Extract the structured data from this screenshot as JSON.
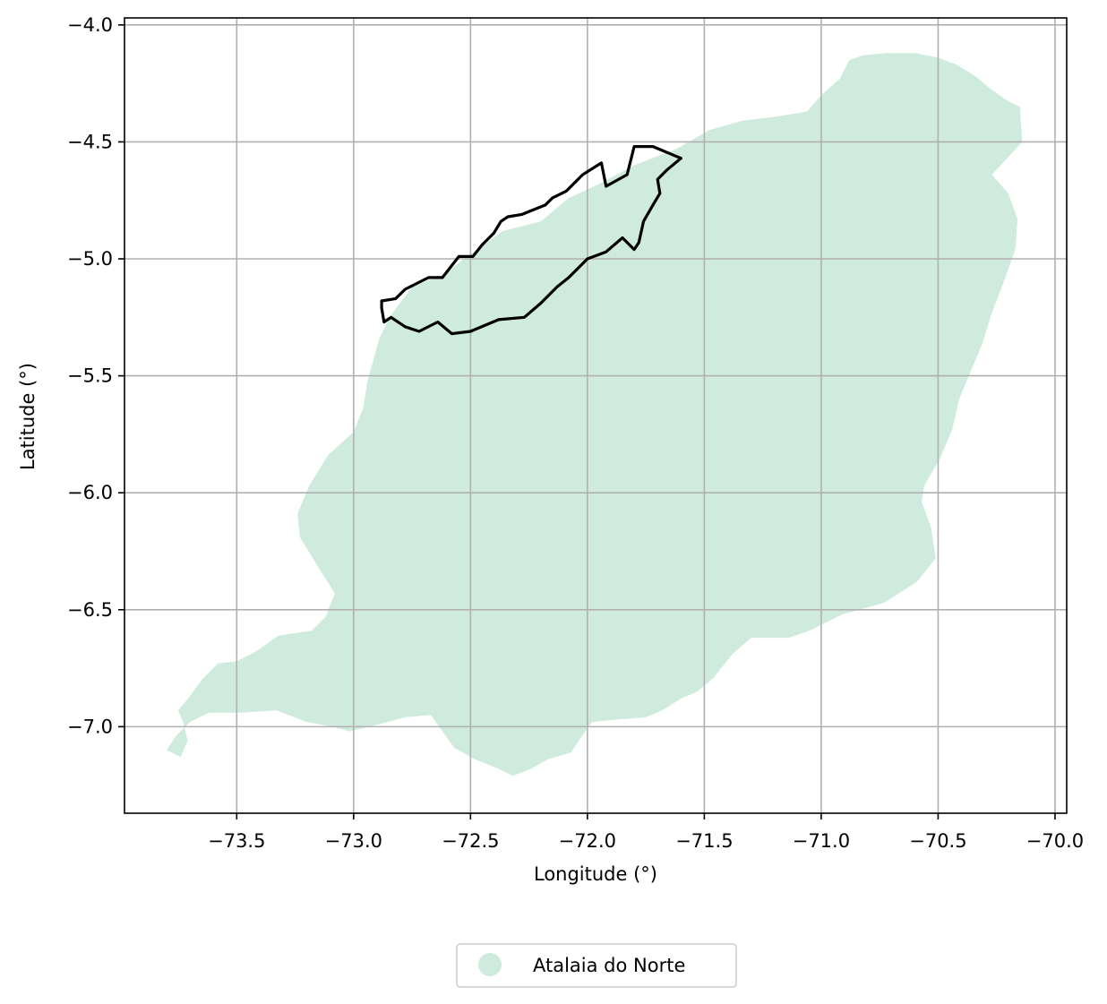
{
  "chart_data": {
    "type": "map",
    "xlabel": "Longitude (°)",
    "ylabel": "Latitude (°)",
    "xlim": [
      -73.98,
      -69.95
    ],
    "ylim": [
      -7.37,
      -3.97
    ],
    "grid": true,
    "x_ticks": [
      {
        "value": -73.5,
        "label": "−73.5"
      },
      {
        "value": -73.0,
        "label": "−73.0"
      },
      {
        "value": -72.5,
        "label": "−72.5"
      },
      {
        "value": -72.0,
        "label": "−72.0"
      },
      {
        "value": -71.5,
        "label": "−71.5"
      },
      {
        "value": -71.0,
        "label": "−71.0"
      },
      {
        "value": -70.5,
        "label": "−70.5"
      },
      {
        "value": -70.0,
        "label": "−70.0"
      }
    ],
    "y_ticks": [
      {
        "value": -4.0,
        "label": "−4.0"
      },
      {
        "value": -4.5,
        "label": "−4.5"
      },
      {
        "value": -5.0,
        "label": "−5.0"
      },
      {
        "value": -5.5,
        "label": "−5.5"
      },
      {
        "value": -6.0,
        "label": "−6.0"
      },
      {
        "value": -6.5,
        "label": "−6.5"
      },
      {
        "value": -7.0,
        "label": "−7.0"
      }
    ],
    "region": {
      "name": "Atalaia do Norte",
      "fill": "#cfebde",
      "coordinates": [
        [
          -73.8,
          -7.1
        ],
        [
          -73.74,
          -7.13
        ],
        [
          -73.71,
          -7.06
        ],
        [
          -73.73,
          -6.98
        ],
        [
          -73.75,
          -6.93
        ],
        [
          -73.7,
          -6.87
        ],
        [
          -73.65,
          -6.8
        ],
        [
          -73.58,
          -6.73
        ],
        [
          -73.5,
          -6.72
        ],
        [
          -73.42,
          -6.68
        ],
        [
          -73.32,
          -6.61
        ],
        [
          -73.18,
          -6.59
        ],
        [
          -73.12,
          -6.53
        ],
        [
          -73.08,
          -6.43
        ],
        [
          -73.15,
          -6.32
        ],
        [
          -73.23,
          -6.19
        ],
        [
          -73.24,
          -6.09
        ],
        [
          -73.19,
          -5.97
        ],
        [
          -73.11,
          -5.84
        ],
        [
          -73.0,
          -5.74
        ],
        [
          -72.96,
          -5.64
        ],
        [
          -72.94,
          -5.52
        ],
        [
          -72.89,
          -5.34
        ],
        [
          -72.84,
          -5.24
        ],
        [
          -72.75,
          -5.12
        ],
        [
          -72.62,
          -5.07
        ],
        [
          -72.5,
          -4.98
        ],
        [
          -72.36,
          -4.88
        ],
        [
          -72.2,
          -4.84
        ],
        [
          -72.08,
          -4.74
        ],
        [
          -71.95,
          -4.68
        ],
        [
          -71.8,
          -4.6
        ],
        [
          -71.62,
          -4.53
        ],
        [
          -71.48,
          -4.45
        ],
        [
          -71.34,
          -4.41
        ],
        [
          -71.18,
          -4.39
        ],
        [
          -71.06,
          -4.37
        ],
        [
          -71.0,
          -4.3
        ],
        [
          -70.92,
          -4.23
        ],
        [
          -70.88,
          -4.15
        ],
        [
          -70.82,
          -4.13
        ],
        [
          -70.72,
          -4.12
        ],
        [
          -70.6,
          -4.12
        ],
        [
          -70.5,
          -4.14
        ],
        [
          -70.42,
          -4.17
        ],
        [
          -70.34,
          -4.22
        ],
        [
          -70.28,
          -4.27
        ],
        [
          -70.21,
          -4.32
        ],
        [
          -70.15,
          -4.35
        ],
        [
          -70.14,
          -4.5
        ],
        [
          -70.27,
          -4.64
        ],
        [
          -70.2,
          -4.72
        ],
        [
          -70.16,
          -4.83
        ],
        [
          -70.17,
          -4.96
        ],
        [
          -70.22,
          -5.1
        ],
        [
          -70.27,
          -5.23
        ],
        [
          -70.31,
          -5.36
        ],
        [
          -70.36,
          -5.48
        ],
        [
          -70.41,
          -5.6
        ],
        [
          -70.44,
          -5.73
        ],
        [
          -70.49,
          -5.85
        ],
        [
          -70.56,
          -5.97
        ],
        [
          -70.57,
          -6.04
        ],
        [
          -70.53,
          -6.15
        ],
        [
          -70.51,
          -6.28
        ],
        [
          -70.59,
          -6.38
        ],
        [
          -70.73,
          -6.47
        ],
        [
          -70.91,
          -6.52
        ],
        [
          -71.05,
          -6.59
        ],
        [
          -71.14,
          -6.62
        ],
        [
          -71.3,
          -6.62
        ],
        [
          -71.38,
          -6.69
        ],
        [
          -71.46,
          -6.79
        ],
        [
          -71.53,
          -6.85
        ],
        [
          -71.6,
          -6.88
        ],
        [
          -71.68,
          -6.93
        ],
        [
          -71.75,
          -6.96
        ],
        [
          -71.88,
          -6.97
        ],
        [
          -71.98,
          -6.98
        ],
        [
          -72.03,
          -7.05
        ],
        [
          -72.07,
          -7.11
        ],
        [
          -72.17,
          -7.14
        ],
        [
          -72.24,
          -7.18
        ],
        [
          -72.32,
          -7.21
        ],
        [
          -72.38,
          -7.18
        ],
        [
          -72.48,
          -7.14
        ],
        [
          -72.57,
          -7.09
        ],
        [
          -72.62,
          -7.02
        ],
        [
          -72.67,
          -6.95
        ],
        [
          -72.78,
          -6.96
        ],
        [
          -72.93,
          -7.0
        ],
        [
          -73.02,
          -7.02
        ],
        [
          -73.09,
          -7.0
        ],
        [
          -73.2,
          -6.98
        ],
        [
          -73.33,
          -6.93
        ],
        [
          -73.48,
          -6.94
        ],
        [
          -73.62,
          -6.94
        ],
        [
          -73.7,
          -6.98
        ],
        [
          -73.76,
          -7.04
        ]
      ]
    },
    "outline": {
      "stroke": "#000000",
      "coordinates": [
        [
          -72.88,
          -5.18
        ],
        [
          -72.82,
          -5.17
        ],
        [
          -72.78,
          -5.13
        ],
        [
          -72.68,
          -5.08
        ],
        [
          -72.62,
          -5.08
        ],
        [
          -72.55,
          -4.99
        ],
        [
          -72.49,
          -4.99
        ],
        [
          -72.45,
          -4.94
        ],
        [
          -72.4,
          -4.89
        ],
        [
          -72.37,
          -4.84
        ],
        [
          -72.34,
          -4.82
        ],
        [
          -72.28,
          -4.81
        ],
        [
          -72.18,
          -4.77
        ],
        [
          -72.15,
          -4.74
        ],
        [
          -72.09,
          -4.71
        ],
        [
          -72.02,
          -4.64
        ],
        [
          -71.94,
          -4.59
        ],
        [
          -71.92,
          -4.69
        ],
        [
          -71.83,
          -4.64
        ],
        [
          -71.8,
          -4.52
        ],
        [
          -71.72,
          -4.52
        ],
        [
          -71.6,
          -4.57
        ],
        [
          -71.66,
          -4.62
        ],
        [
          -71.7,
          -4.66
        ],
        [
          -71.69,
          -4.72
        ],
        [
          -71.72,
          -4.77
        ],
        [
          -71.76,
          -4.84
        ],
        [
          -71.78,
          -4.93
        ],
        [
          -71.8,
          -4.96
        ],
        [
          -71.85,
          -4.91
        ],
        [
          -71.92,
          -4.97
        ],
        [
          -72.0,
          -5.0
        ],
        [
          -72.08,
          -5.08
        ],
        [
          -72.13,
          -5.12
        ],
        [
          -72.2,
          -5.19
        ],
        [
          -72.27,
          -5.25
        ],
        [
          -72.38,
          -5.26
        ],
        [
          -72.5,
          -5.31
        ],
        [
          -72.58,
          -5.32
        ],
        [
          -72.64,
          -5.27
        ],
        [
          -72.72,
          -5.31
        ],
        [
          -72.78,
          -5.29
        ],
        [
          -72.84,
          -5.25
        ],
        [
          -72.87,
          -5.27
        ],
        [
          -72.88,
          -5.21
        ]
      ]
    },
    "legend": {
      "position": "bottom-center",
      "entries": [
        {
          "label": "Atalaia do Norte",
          "color": "#cfebde"
        }
      ]
    }
  }
}
